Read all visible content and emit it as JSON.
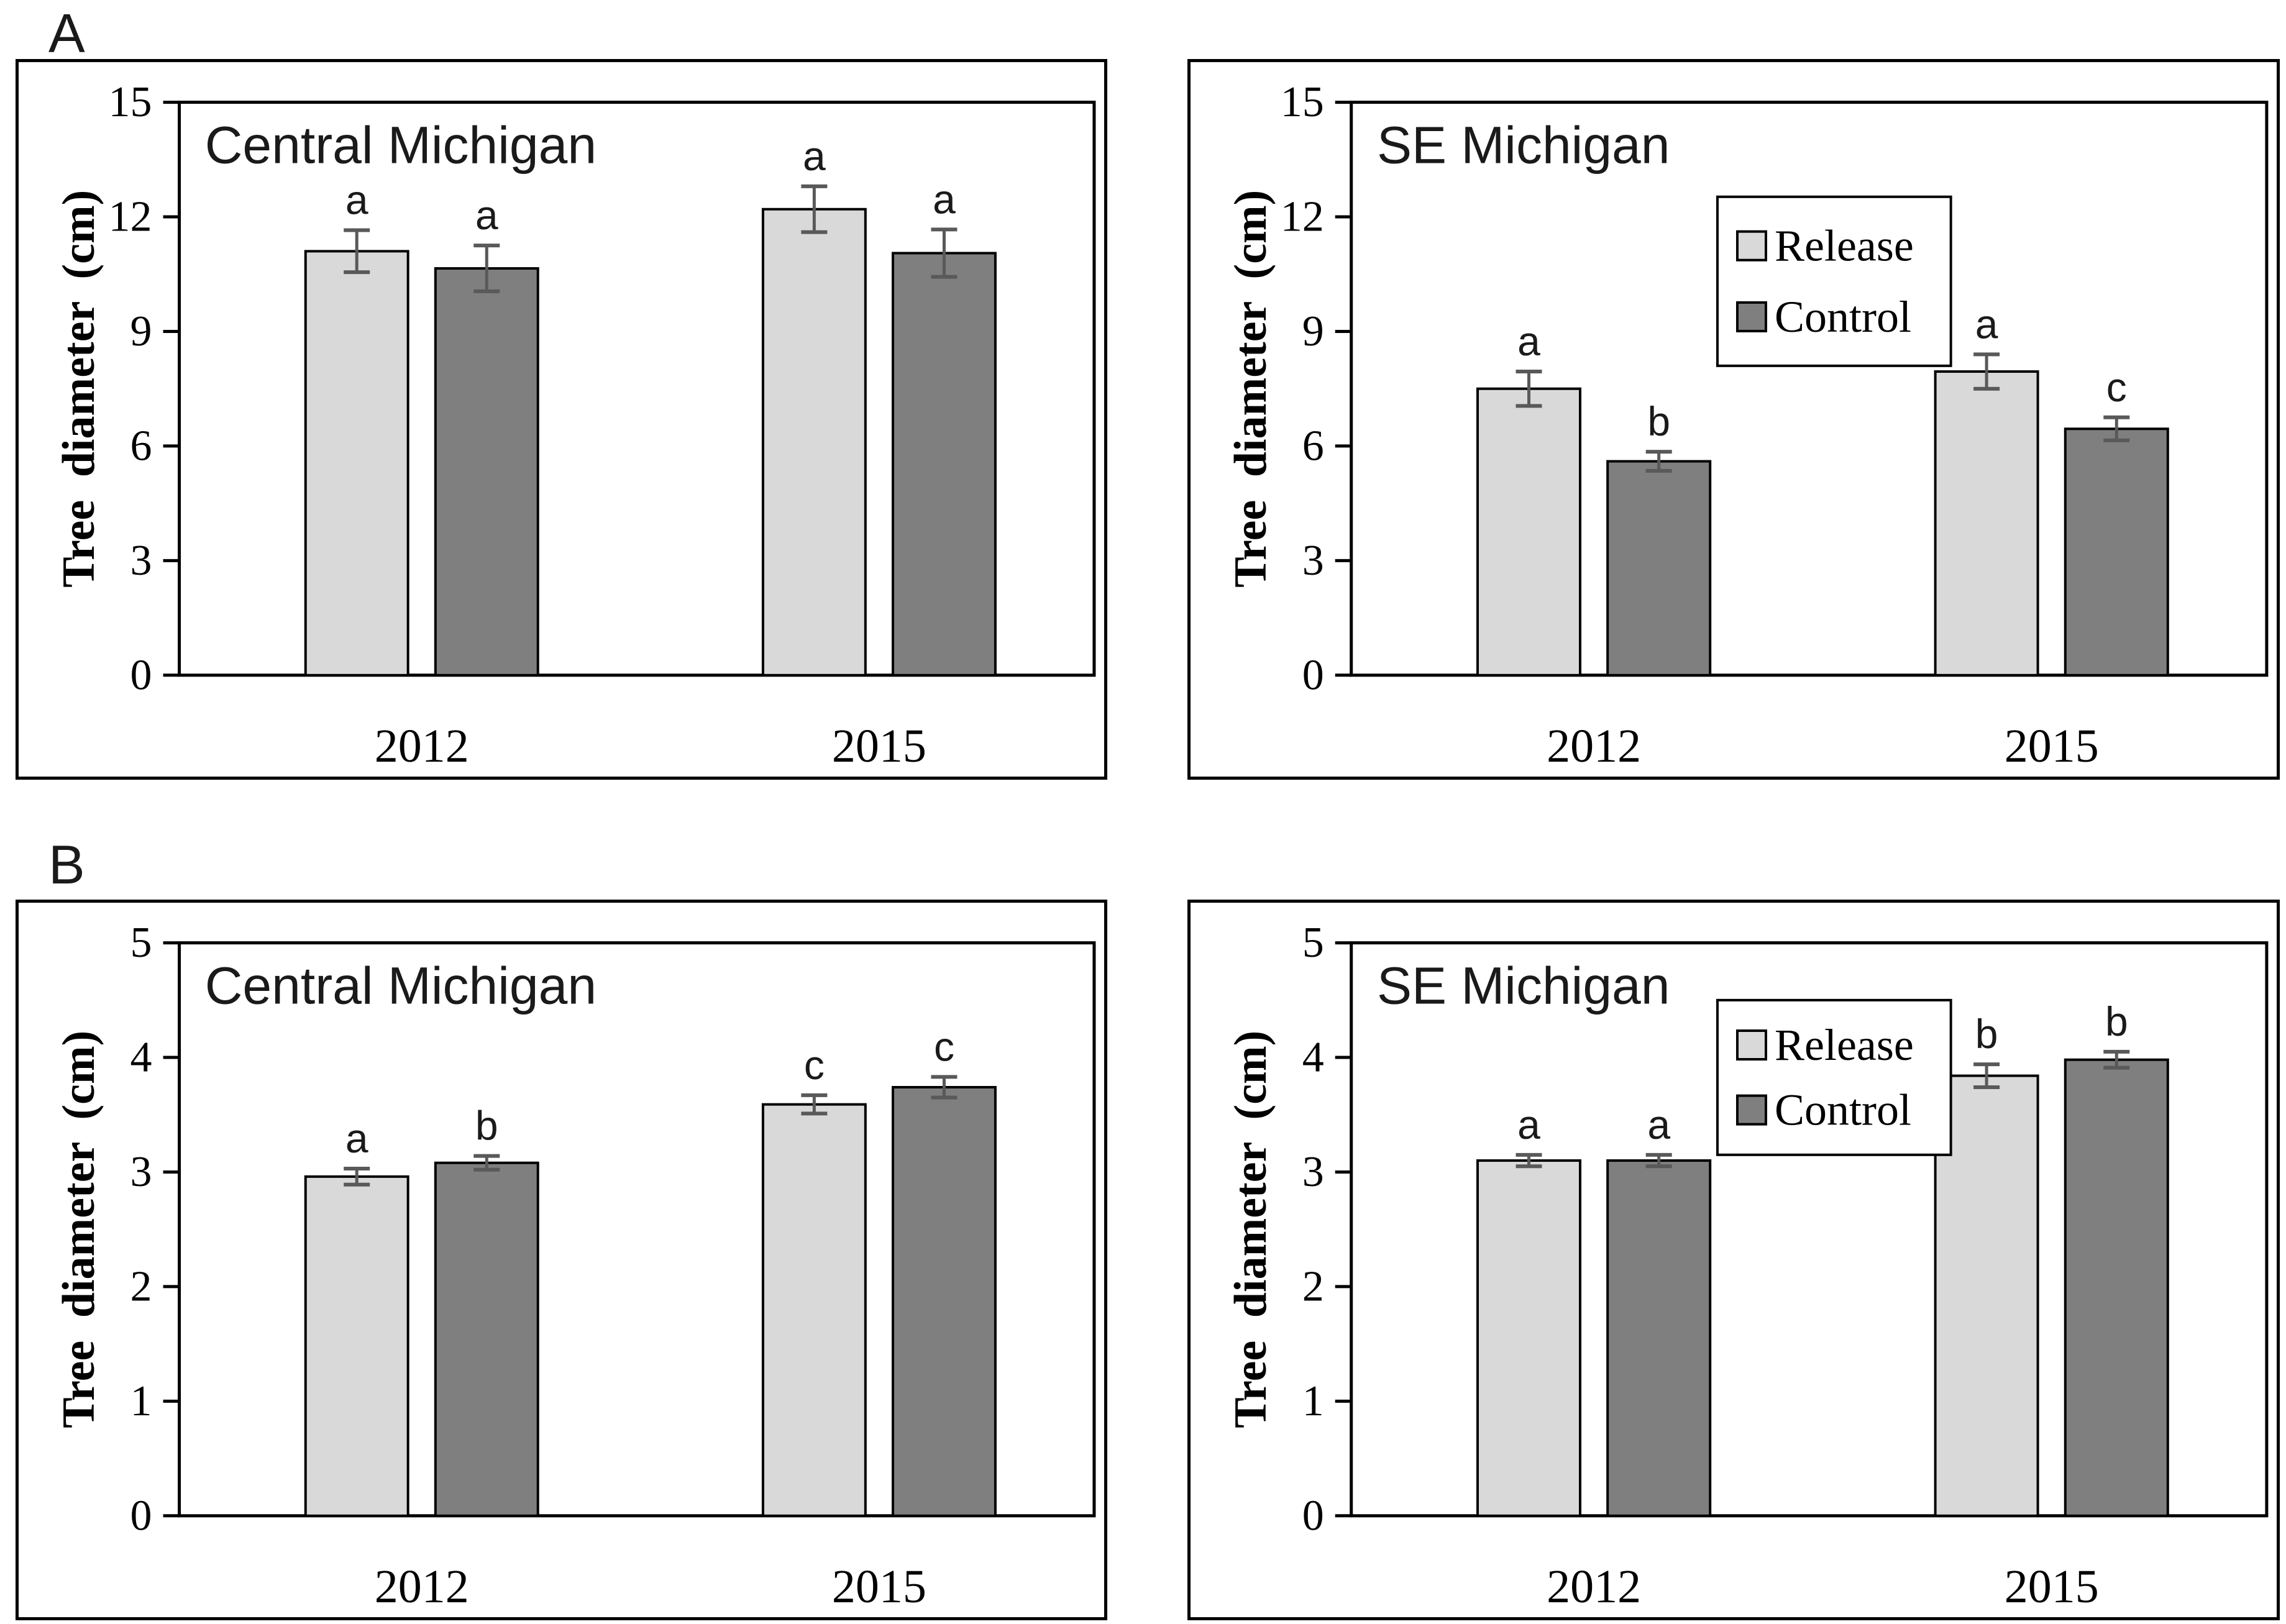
{
  "figure": {
    "background": "#ffffff",
    "section_labels": [
      {
        "label": "A"
      },
      {
        "label": "B"
      }
    ],
    "colors": {
      "release_fill": "#d9d9d9",
      "control_fill": "#7f7f7f",
      "bar_border": "#000000",
      "error_bar": "#595959",
      "axis": "#000000",
      "panel_border": "#000000",
      "text": "#000000"
    },
    "legend": {
      "labels": [
        "Release",
        "Control"
      ]
    }
  },
  "chart_data": [
    {
      "id": "panel-a-central-michigan",
      "section": "A",
      "type": "bar",
      "title": "Central Michigan",
      "ylabel": "Tree diameter (cm)",
      "xlabel": "",
      "ylim": [
        0,
        15
      ],
      "yticks": [
        0,
        3,
        6,
        9,
        12,
        15
      ],
      "grid": false,
      "categories": [
        "2012",
        "2015"
      ],
      "legend_visible": false,
      "series": [
        {
          "name": "Release",
          "fill": "#d9d9d9",
          "values": [
            11.1,
            12.2
          ],
          "errors": [
            0.55,
            0.6
          ],
          "letters": [
            "a",
            "a"
          ]
        },
        {
          "name": "Control",
          "fill": "#7f7f7f",
          "values": [
            10.65,
            11.05
          ],
          "errors": [
            0.6,
            0.62
          ],
          "letters": [
            "a",
            "a"
          ]
        }
      ]
    },
    {
      "id": "panel-a-se-michigan",
      "section": "A",
      "type": "bar",
      "title": "SE Michigan",
      "ylabel": "Tree diameter (cm)",
      "xlabel": "",
      "ylim": [
        0,
        15
      ],
      "yticks": [
        0,
        3,
        6,
        9,
        12,
        15
      ],
      "grid": false,
      "categories": [
        "2012",
        "2015"
      ],
      "legend_visible": true,
      "legend_position": "upper-middle-inside",
      "series": [
        {
          "name": "Release",
          "fill": "#d9d9d9",
          "values": [
            7.5,
            7.95
          ],
          "errors": [
            0.45,
            0.45
          ],
          "letters": [
            "a",
            "a"
          ]
        },
        {
          "name": "Control",
          "fill": "#7f7f7f",
          "values": [
            5.6,
            6.45
          ],
          "errors": [
            0.25,
            0.3
          ],
          "letters": [
            "b",
            "c"
          ]
        }
      ]
    },
    {
      "id": "panel-b-central-michigan",
      "section": "B",
      "type": "bar",
      "title": "Central Michigan",
      "ylabel": "Tree diameter (cm)",
      "xlabel": "",
      "ylim": [
        0,
        5
      ],
      "yticks": [
        0,
        1,
        2,
        3,
        4,
        5
      ],
      "grid": false,
      "categories": [
        "2012",
        "2015"
      ],
      "legend_visible": false,
      "series": [
        {
          "name": "Release",
          "fill": "#d9d9d9",
          "values": [
            2.96,
            3.59
          ],
          "errors": [
            0.07,
            0.08
          ],
          "letters": [
            "a",
            "c"
          ]
        },
        {
          "name": "Control",
          "fill": "#7f7f7f",
          "values": [
            3.08,
            3.74
          ],
          "errors": [
            0.06,
            0.09
          ],
          "letters": [
            "b",
            "c"
          ]
        }
      ]
    },
    {
      "id": "panel-b-se-michigan",
      "section": "B",
      "type": "bar",
      "title": "SE Michigan",
      "ylabel": "Tree diameter (cm)",
      "xlabel": "",
      "ylim": [
        0,
        5
      ],
      "yticks": [
        0,
        1,
        2,
        3,
        4,
        5
      ],
      "grid": false,
      "categories": [
        "2012",
        "2015"
      ],
      "legend_visible": true,
      "legend_position": "upper-middle-inside",
      "series": [
        {
          "name": "Release",
          "fill": "#d9d9d9",
          "values": [
            3.1,
            3.84
          ],
          "errors": [
            0.05,
            0.1
          ],
          "letters": [
            "a",
            "b"
          ]
        },
        {
          "name": "Control",
          "fill": "#7f7f7f",
          "values": [
            3.1,
            3.98
          ],
          "errors": [
            0.05,
            0.07
          ],
          "letters": [
            "a",
            "b"
          ]
        }
      ]
    }
  ]
}
